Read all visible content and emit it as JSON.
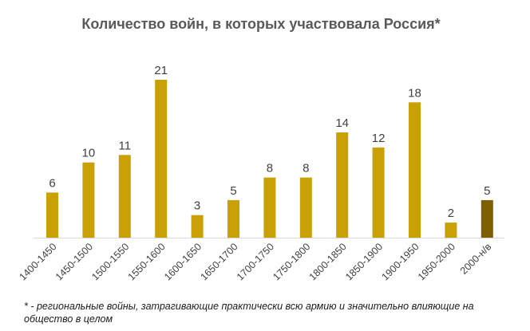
{
  "chart_data": {
    "type": "bar",
    "title": "Количество войн, в которых участвовала Россия*",
    "xlabel": "",
    "ylabel": "",
    "ylim": [
      0,
      21
    ],
    "grid": false,
    "legend": "none",
    "categories": [
      "1400-1450",
      "1450-1500",
      "1500-1550",
      "1550-1600",
      "1600-1650",
      "1650-1700",
      "1700-1750",
      "1750-1800",
      "1800-1850",
      "1850-1900",
      "1900-1950",
      "1950-2000",
      "2000-н/в"
    ],
    "values": [
      6,
      10,
      11,
      21,
      3,
      5,
      8,
      8,
      14,
      12,
      18,
      2,
      5
    ],
    "data_labels": [
      "6",
      "10",
      "11",
      "21",
      "3",
      "5",
      "8",
      "8",
      "14",
      "12",
      "18",
      "2",
      "5"
    ],
    "bar_color": "#C9A005",
    "highlight_color": "#7F6000",
    "highlight_index": 12
  },
  "footnote": "* - региональные войны, затрагивающие практически всю армию и значительно влияющие на общество в целом"
}
